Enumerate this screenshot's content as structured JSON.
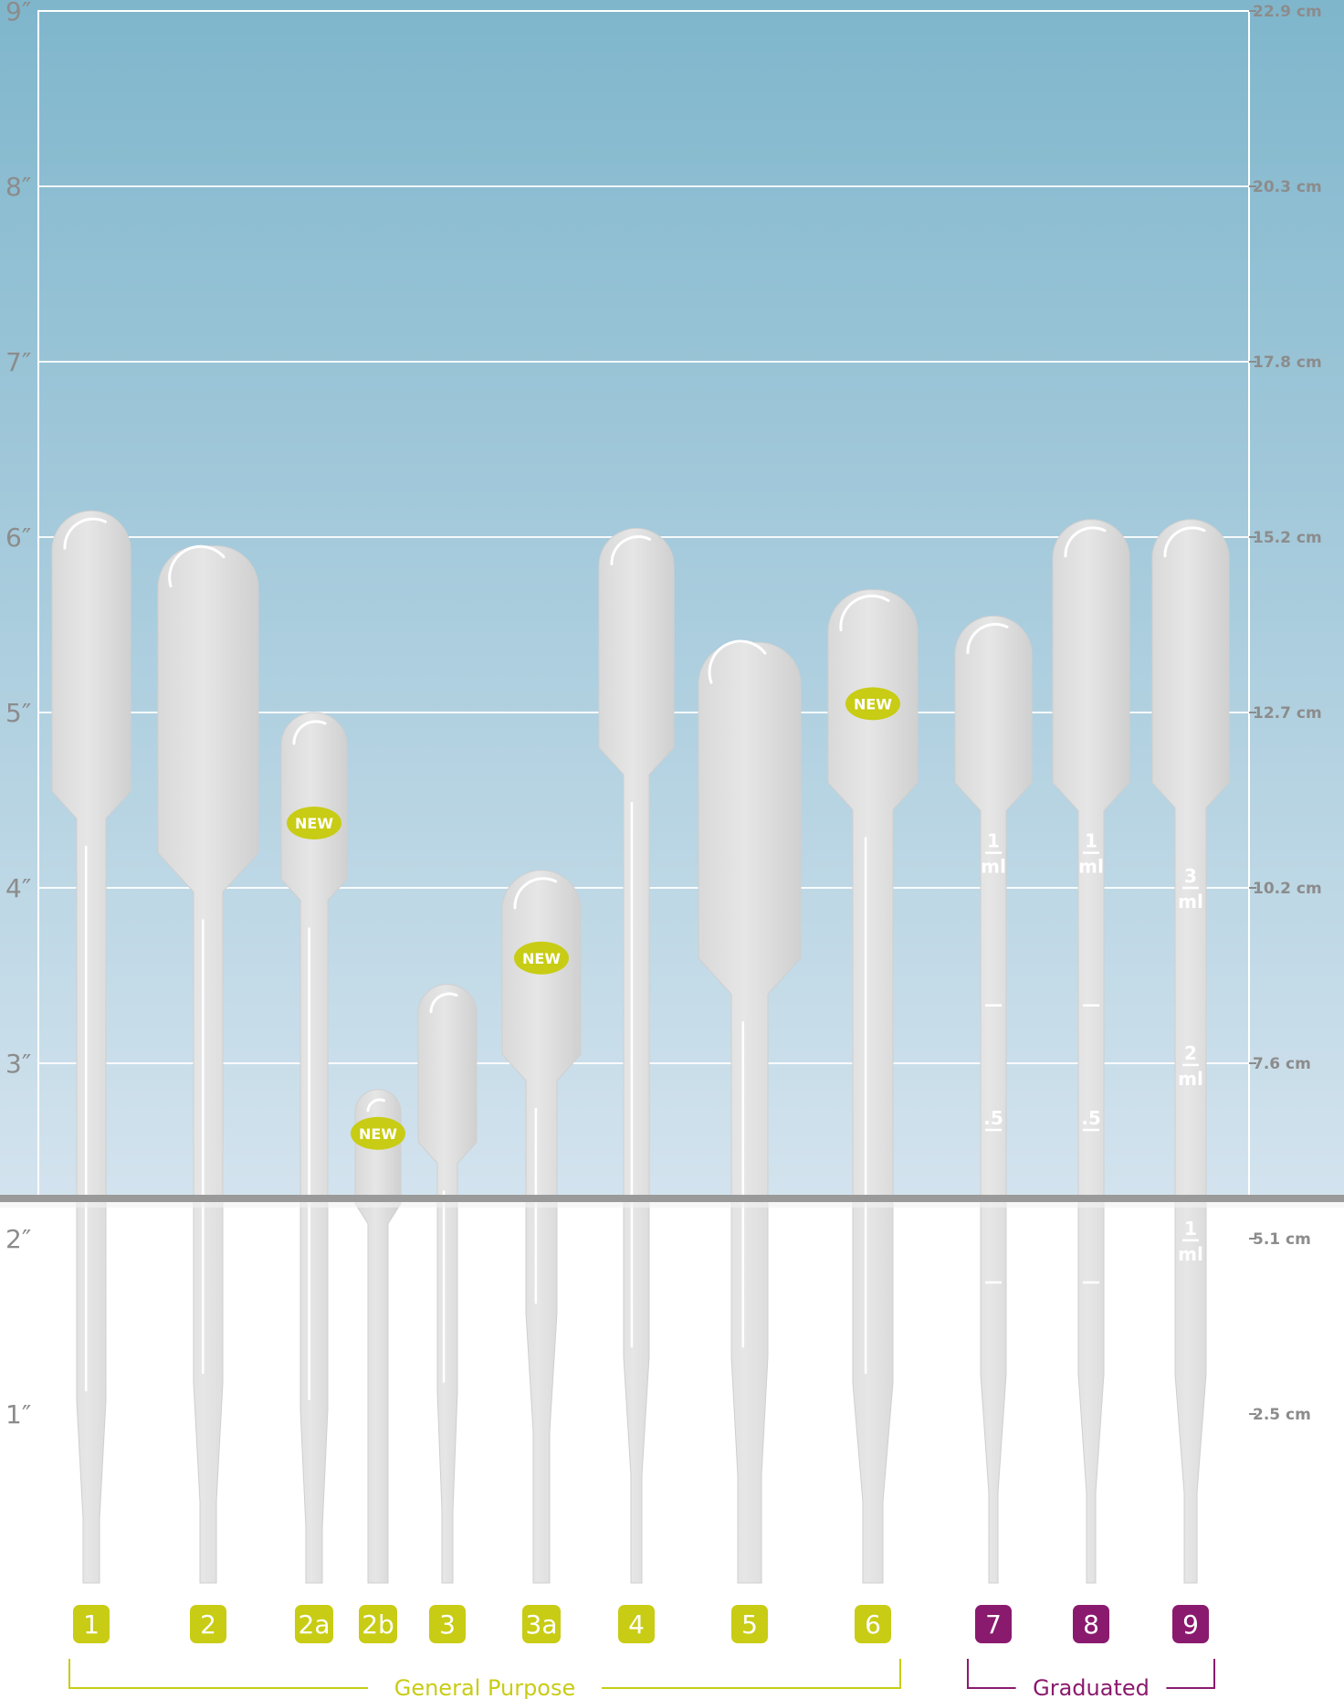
{
  "inch_labels": [
    "1″",
    "2″",
    "3″",
    "4″",
    "5″",
    "6″",
    "7″",
    "8″",
    "9″"
  ],
  "cm_labels": [
    "2.5 cm",
    "5.1 cm",
    "7.6 cm",
    "10.2 cm",
    "12.7 cm",
    "15.2 cm",
    "17.8 cm",
    "20.3 cm",
    "22.9 cm"
  ],
  "colors": {
    "sky_top": "#7fb6cc",
    "sky_bottom": "#d3e3ee",
    "grid": "#ffffff",
    "counter_line": "#9a9a9a",
    "pipette": "#e0e0e0",
    "general_purpose": "#c8cc14",
    "graduated": "#8a1a6e",
    "label_gray": "#8c8c8c"
  },
  "new_badge_text": "NEW",
  "groups": [
    {
      "label": "General Purpose",
      "color": "#c8cc14",
      "first": 0,
      "last": 8
    },
    {
      "label": "Graduated",
      "color": "#8a1a6e",
      "first": 9,
      "last": 11
    }
  ],
  "pipettes": [
    {
      "id": "1",
      "group": "general",
      "bulb_top_in": 6.15,
      "bulb_width": 86,
      "bulb_bottom_in": 4.55,
      "stem_width": 32,
      "tip_top_in": 0.4,
      "tip_width": 18,
      "is_new": false
    },
    {
      "id": "2",
      "group": "general",
      "bulb_top_in": 5.95,
      "bulb_width": 110,
      "bulb_bottom_in": 4.2,
      "stem_width": 32,
      "tip_top_in": 0.5,
      "tip_width": 18,
      "is_new": false
    },
    {
      "id": "2a",
      "group": "general",
      "bulb_top_in": 5.0,
      "bulb_width": 72,
      "bulb_bottom_in": 4.05,
      "stem_width": 30,
      "tip_top_in": 0.35,
      "tip_width": 18,
      "is_new": true
    },
    {
      "id": "2b",
      "group": "general",
      "bulb_top_in": 2.85,
      "bulb_width": 50,
      "bulb_bottom_in": 2.2,
      "stem_width": 22,
      "tip_top_in": null,
      "tip_width": 22,
      "is_new": true
    },
    {
      "id": "3",
      "group": "general",
      "bulb_top_in": 3.45,
      "bulb_width": 64,
      "bulb_bottom_in": 2.55,
      "stem_width": 22,
      "tip_top_in": 0.45,
      "tip_width": 12,
      "is_new": false
    },
    {
      "id": "3a",
      "group": "general",
      "bulb_top_in": 4.1,
      "bulb_width": 86,
      "bulb_bottom_in": 3.05,
      "stem_width": 34,
      "tip_top_in": 0.9,
      "tip_width": 18,
      "is_new": true
    },
    {
      "id": "4",
      "group": "general",
      "bulb_top_in": 6.05,
      "bulb_width": 82,
      "bulb_bottom_in": 4.8,
      "stem_width": 28,
      "tip_top_in": 0.65,
      "tip_width": 12,
      "is_new": false
    },
    {
      "id": "5",
      "group": "general",
      "bulb_top_in": 5.4,
      "bulb_width": 112,
      "bulb_bottom_in": 3.6,
      "stem_width": 40,
      "tip_top_in": 0.65,
      "tip_width": 26,
      "is_new": false
    },
    {
      "id": "6",
      "group": "general",
      "bulb_top_in": 5.7,
      "bulb_width": 98,
      "bulb_bottom_in": 4.6,
      "stem_width": 44,
      "tip_top_in": 0.5,
      "tip_width": 22,
      "is_new": true
    },
    {
      "id": "7",
      "group": "graduated",
      "bulb_top_in": 5.55,
      "bulb_width": 84,
      "bulb_bottom_in": 4.6,
      "stem_width": 28,
      "tip_top_in": 0.55,
      "tip_width": 10,
      "is_new": false
    },
    {
      "id": "8",
      "group": "graduated",
      "bulb_top_in": 6.1,
      "bulb_width": 84,
      "bulb_bottom_in": 4.6,
      "stem_width": 28,
      "tip_top_in": 0.55,
      "tip_width": 10,
      "is_new": false
    },
    {
      "id": "9",
      "group": "graduated",
      "bulb_top_in": 6.1,
      "bulb_width": 84,
      "bulb_bottom_in": 4.6,
      "stem_width": 34,
      "tip_top_in": 0.55,
      "tip_width": 14,
      "is_new": false
    }
  ],
  "graduations": {
    "p7": [
      {
        "top": "1",
        "bottom": "ml"
      },
      {
        "top": ".5",
        "bottom": ""
      }
    ],
    "p8": [
      {
        "top": "1",
        "bottom": "ml"
      },
      {
        "top": ".5",
        "bottom": ""
      }
    ],
    "p9": [
      {
        "top": "3",
        "bottom": "ml"
      },
      {
        "top": "2",
        "bottom": "ml"
      },
      {
        "top": "1",
        "bottom": "ml"
      }
    ]
  }
}
